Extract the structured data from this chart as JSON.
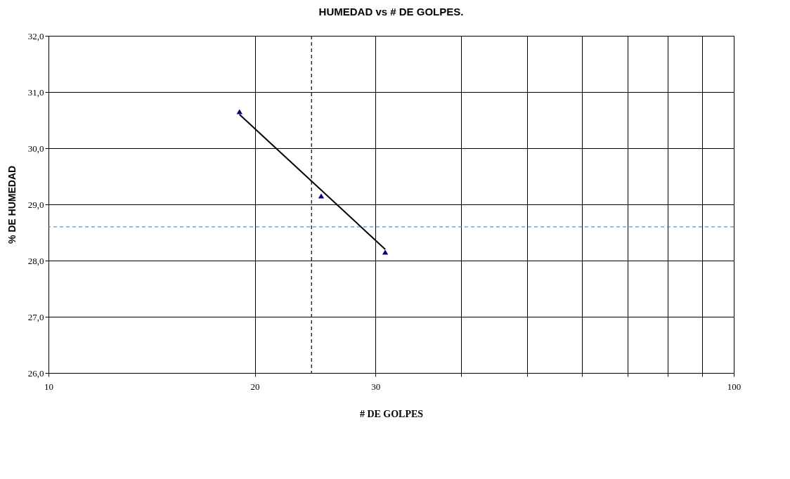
{
  "chart_data": {
    "type": "scatter",
    "title": "HUMEDAD vs # DE GOLPES.",
    "xlabel": "# DE GOLPES",
    "ylabel": "% DE HUMEDAD",
    "log": "x",
    "grid": true,
    "xlim": [
      10,
      100
    ],
    "xticks": [
      10,
      20,
      30,
      {
        "value": 40,
        "label": null
      },
      {
        "value": 50,
        "label": null
      },
      {
        "value": 60,
        "label": null
      },
      {
        "value": 70,
        "label": null
      },
      {
        "value": 80,
        "label": null
      },
      {
        "value": 90,
        "label": null
      },
      100
    ],
    "ylim": [
      26,
      32
    ],
    "yticks": [
      {
        "value": 26,
        "label": "26,0"
      },
      {
        "value": 27,
        "label": "27,0"
      },
      {
        "value": 28,
        "label": "28,0"
      },
      {
        "value": 29,
        "label": "29,0"
      },
      {
        "value": 30,
        "label": "30,0"
      },
      {
        "value": 31,
        "label": "31,0"
      },
      {
        "value": 32,
        "label": "32,0"
      }
    ],
    "series": [
      {
        "color": "#000080",
        "marker": "triangle",
        "x": [
          19,
          25,
          31
        ],
        "values": [
          30.65,
          29.15,
          28.15
        ]
      },
      {
        "type": "line",
        "color": "#000000",
        "x": [
          19,
          31
        ],
        "values": [
          30.6,
          28.2
        ]
      }
    ],
    "ref_lines": [
      {
        "axis": "x",
        "value": 24.2,
        "color": "#000000",
        "line_style": "dashed"
      },
      {
        "axis": "y",
        "value": 28.6,
        "color": "#2e75b6",
        "line_style": "dashed"
      }
    ]
  }
}
